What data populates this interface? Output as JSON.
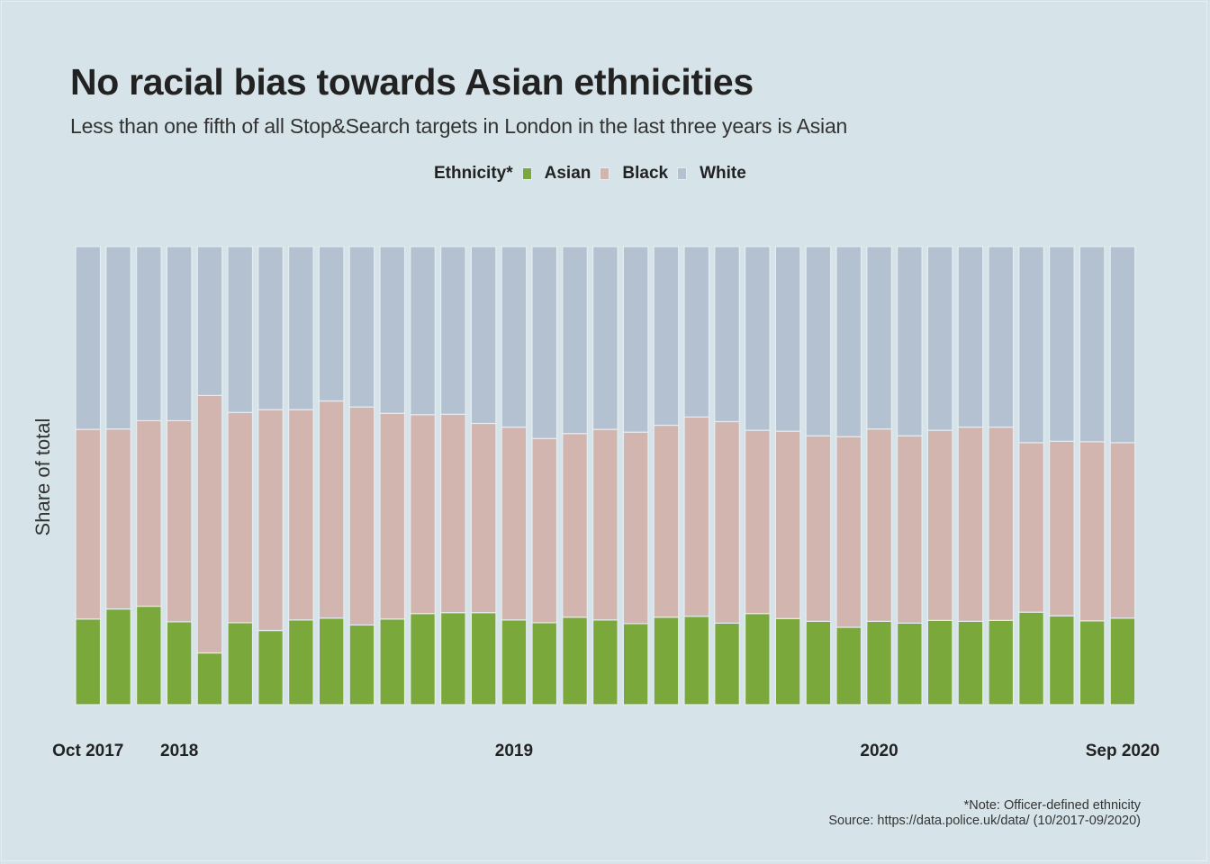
{
  "title": "No racial bias towards Asian ethnicities",
  "subtitle": "Less than one fifth of all Stop&Search targets in London in the last three years is Asian",
  "legend": {
    "title": "Ethnicity*",
    "items": [
      {
        "label": "Asian",
        "color": "#7aa83a"
      },
      {
        "label": "Black",
        "color": "#d3b5b0"
      },
      {
        "label": "White",
        "color": "#b3c1d1"
      }
    ]
  },
  "note": "*Note: Officer-defined ethnicity",
  "source": "Source: https://data.police.uk/data/ (10/2017-09/2020)",
  "chart_data": {
    "type": "bar",
    "stacked": true,
    "normalized": true,
    "title": "No racial bias towards Asian ethnicities",
    "subtitle": "Less than one fifth of all Stop&Search targets in London in the last three years is Asian",
    "xlabel": "",
    "ylabel": "Share of total",
    "ylim": [
      0,
      100
    ],
    "grid": false,
    "legend_position": "top",
    "x_tick_labels": [
      {
        "index": 0,
        "label": "Oct 2017"
      },
      {
        "index": 3,
        "label": "2018"
      },
      {
        "index": 14,
        "label": "2019"
      },
      {
        "index": 26,
        "label": "2020"
      },
      {
        "index": 34,
        "label": "Sep 2020"
      }
    ],
    "n_periods": 35,
    "series": [
      {
        "name": "Asian",
        "color": "#7aa83a",
        "values": [
          18.7,
          20.9,
          21.5,
          18.1,
          11.3,
          17.9,
          16.2,
          18.5,
          18.9,
          17.4,
          18.7,
          19.9,
          20.1,
          20.1,
          18.5,
          17.9,
          19.1,
          18.5,
          17.7,
          19.1,
          19.3,
          17.8,
          19.9,
          18.8,
          18.2,
          16.9,
          18.2,
          17.8,
          18.4,
          18.2,
          18.4,
          20.2,
          19.4,
          18.3,
          18.9
        ]
      },
      {
        "name": "Black",
        "color": "#d3b5b0",
        "values": [
          41.4,
          39.3,
          40.5,
          43.9,
          56.2,
          45.9,
          48.2,
          45.9,
          47.4,
          47.6,
          44.9,
          43.4,
          43.3,
          41.3,
          42.1,
          40.2,
          40.1,
          41.6,
          41.8,
          41.9,
          43.5,
          44.0,
          40.0,
          40.9,
          40.5,
          41.6,
          42.0,
          40.9,
          41.5,
          42.4,
          42.2,
          37.0,
          38.1,
          39.1,
          38.3
        ]
      },
      {
        "name": "White",
        "color": "#b3c1d1",
        "values": [
          39.9,
          39.8,
          38.0,
          38.0,
          32.5,
          36.2,
          35.6,
          35.6,
          33.7,
          35.0,
          36.4,
          36.7,
          36.6,
          38.6,
          39.4,
          41.9,
          40.8,
          39.9,
          40.5,
          39.0,
          37.2,
          38.2,
          40.1,
          40.3,
          41.3,
          41.5,
          39.8,
          41.3,
          40.1,
          39.4,
          39.4,
          42.8,
          42.5,
          42.6,
          42.8
        ]
      }
    ]
  }
}
